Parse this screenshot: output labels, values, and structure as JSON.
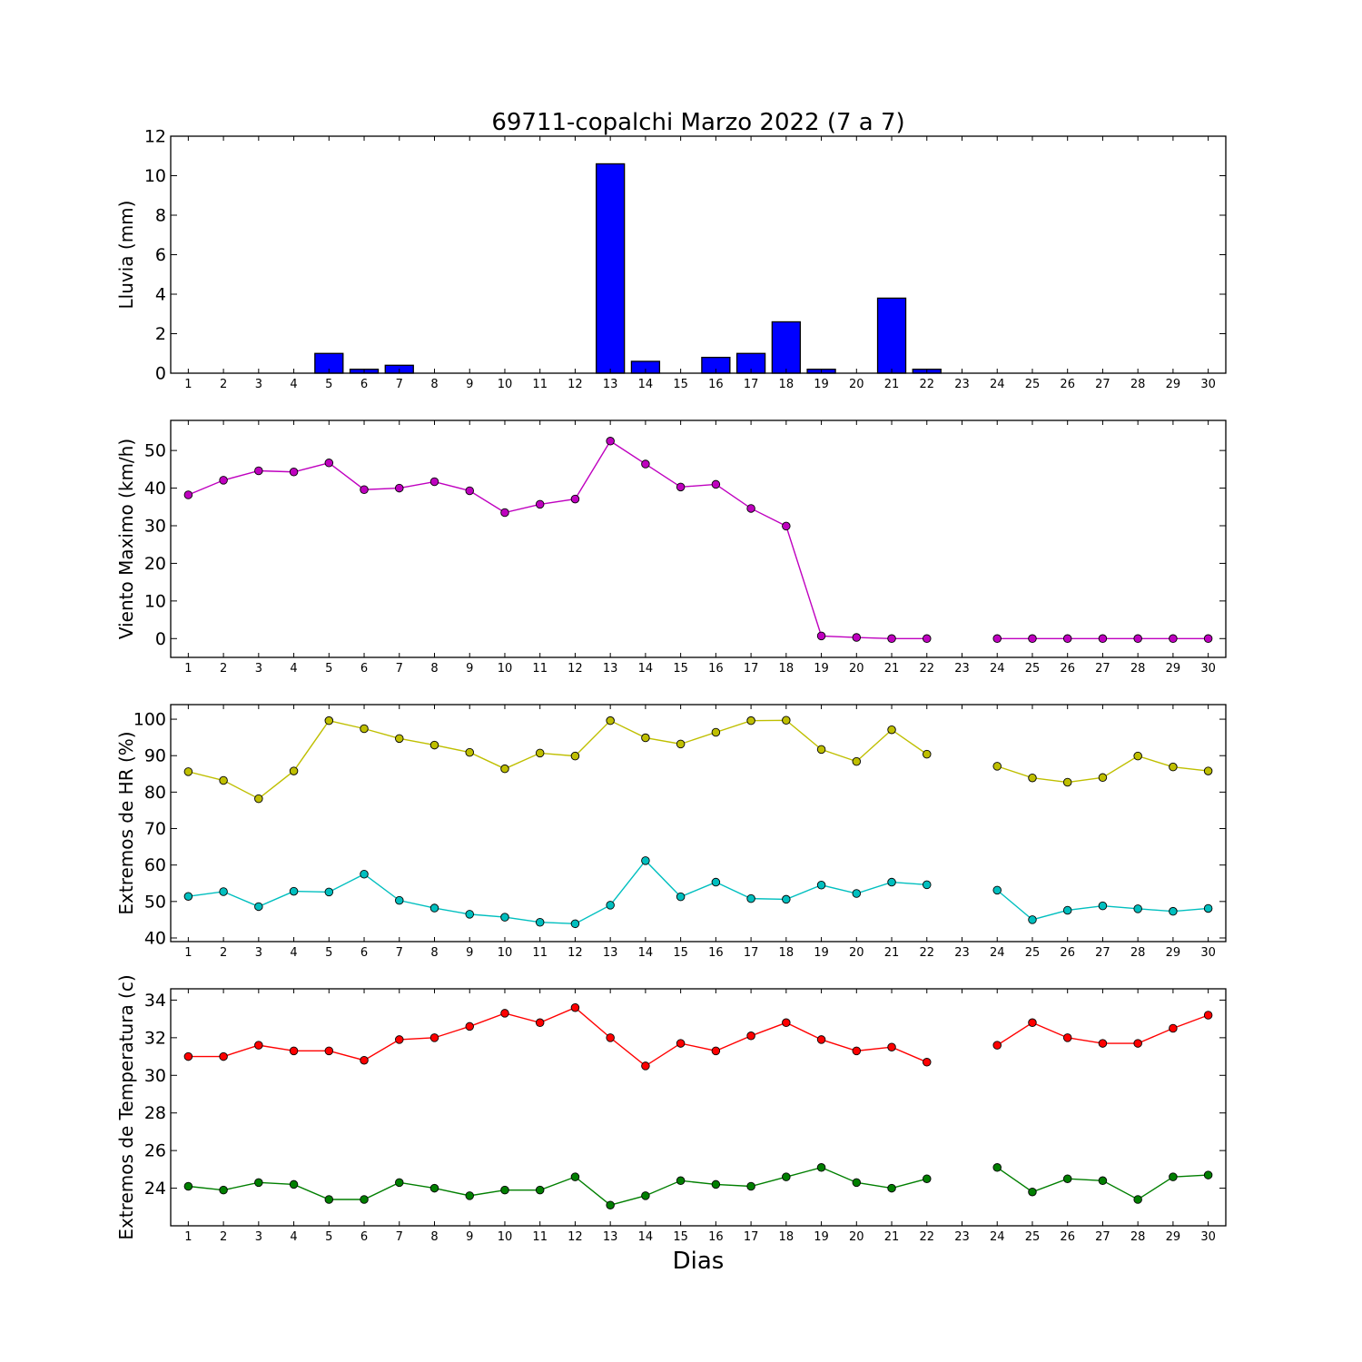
{
  "title": "69711-copalchi Marzo 2022  (7 a 7)",
  "xlabel": "Dias",
  "chart_data": [
    {
      "type": "bar",
      "ylabel": "Lluvia (mm)",
      "ylim": [
        0,
        12
      ],
      "yticks": [
        0,
        2,
        4,
        6,
        8,
        10,
        12
      ],
      "x": [
        1,
        2,
        3,
        4,
        5,
        6,
        7,
        8,
        9,
        10,
        11,
        12,
        13,
        14,
        15,
        16,
        17,
        18,
        19,
        20,
        21,
        22,
        23,
        24,
        25,
        26,
        27,
        28,
        29,
        30
      ],
      "xlim": [
        0.5,
        30.5
      ],
      "color": "#0000ff",
      "values": [
        0,
        0,
        0,
        0,
        1.0,
        0.2,
        0.4,
        0,
        0,
        0,
        0,
        0,
        10.6,
        0.6,
        0,
        0.8,
        1.0,
        2.6,
        0.2,
        0,
        3.8,
        0.2,
        0,
        0,
        0,
        0,
        0,
        0,
        0,
        0
      ]
    },
    {
      "type": "line",
      "ylabel": "Viento Maximo (km/h)",
      "ylim": [
        -5,
        58
      ],
      "yticks": [
        0,
        10,
        20,
        30,
        40,
        50
      ],
      "x": [
        1,
        2,
        3,
        4,
        5,
        6,
        7,
        8,
        9,
        10,
        11,
        12,
        13,
        14,
        15,
        16,
        17,
        18,
        19,
        20,
        21,
        22,
        23,
        24,
        25,
        26,
        27,
        28,
        29,
        30
      ],
      "xlim": [
        0.5,
        30.5
      ],
      "series": [
        {
          "color": "#bf00bf",
          "values": [
            38.2,
            42.1,
            44.6,
            44.3,
            46.7,
            39.6,
            40.0,
            41.7,
            39.3,
            33.5,
            35.7,
            37.1,
            52.5,
            46.4,
            40.3,
            41.0,
            34.6,
            29.9,
            0.7,
            0.3,
            0,
            0,
            null,
            0,
            0,
            0,
            0,
            0,
            0,
            0
          ]
        }
      ]
    },
    {
      "type": "line",
      "ylabel": "Extremos de HR (%)",
      "ylim": [
        39,
        104
      ],
      "yticks": [
        40,
        50,
        60,
        70,
        80,
        90,
        100
      ],
      "x": [
        1,
        2,
        3,
        4,
        5,
        6,
        7,
        8,
        9,
        10,
        11,
        12,
        13,
        14,
        15,
        16,
        17,
        18,
        19,
        20,
        21,
        22,
        23,
        24,
        25,
        26,
        27,
        28,
        29,
        30
      ],
      "xlim": [
        0.5,
        30.5
      ],
      "series": [
        {
          "color": "#bfbf00",
          "values": [
            85.6,
            83.2,
            78.2,
            85.8,
            99.6,
            97.4,
            94.7,
            92.9,
            90.9,
            86.4,
            90.7,
            89.9,
            99.6,
            94.9,
            93.2,
            96.4,
            99.6,
            99.7,
            91.7,
            88.4,
            97.1,
            90.4,
            null,
            87.1,
            83.9,
            82.7,
            84.0,
            89.9,
            86.9,
            85.8
          ]
        },
        {
          "color": "#00bfbf",
          "values": [
            51.4,
            52.7,
            48.6,
            52.8,
            52.6,
            57.5,
            50.3,
            48.2,
            46.5,
            45.7,
            44.3,
            43.9,
            49.0,
            61.2,
            51.3,
            55.3,
            50.8,
            50.6,
            54.5,
            52.2,
            55.3,
            54.6,
            null,
            53.1,
            45.0,
            47.6,
            48.8,
            48.0,
            47.3,
            48.1
          ]
        }
      ]
    },
    {
      "type": "line",
      "ylabel": "Extremos de Temperatura (c)",
      "ylim": [
        22.0,
        34.6
      ],
      "yticks": [
        24,
        26,
        28,
        30,
        32,
        34
      ],
      "x": [
        1,
        2,
        3,
        4,
        5,
        6,
        7,
        8,
        9,
        10,
        11,
        12,
        13,
        14,
        15,
        16,
        17,
        18,
        19,
        20,
        21,
        22,
        23,
        24,
        25,
        26,
        27,
        28,
        29,
        30
      ],
      "xlim": [
        0.5,
        30.5
      ],
      "series": [
        {
          "color": "#ff0000",
          "values": [
            31.0,
            31.0,
            31.6,
            31.3,
            31.3,
            30.8,
            31.9,
            32.0,
            32.6,
            33.3,
            32.8,
            33.6,
            32.0,
            30.5,
            31.7,
            31.3,
            32.1,
            32.8,
            31.9,
            31.3,
            31.5,
            30.7,
            null,
            31.6,
            32.8,
            32.0,
            31.7,
            31.7,
            32.5,
            33.2
          ]
        },
        {
          "color": "#007f00",
          "values": [
            24.1,
            23.9,
            24.3,
            24.2,
            23.4,
            23.4,
            24.3,
            24.0,
            23.6,
            23.9,
            23.9,
            24.6,
            23.1,
            23.6,
            24.4,
            24.2,
            24.1,
            24.6,
            25.1,
            24.3,
            24.0,
            24.5,
            null,
            25.1,
            23.8,
            24.5,
            24.4,
            23.4,
            24.6,
            24.7
          ]
        }
      ]
    }
  ]
}
